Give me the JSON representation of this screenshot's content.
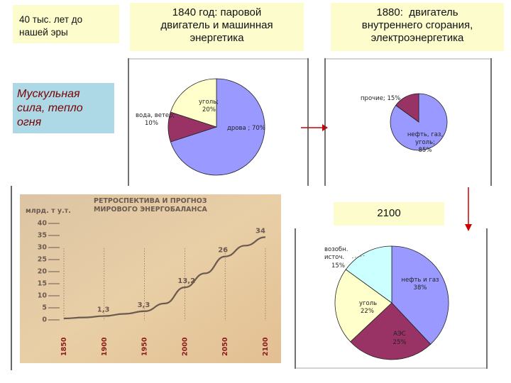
{
  "boxes": {
    "ancient": "40 тыс. лет до\nнашей эры",
    "muscle": "Мускульная\nсила, тепло\nогня",
    "y1840": "1840 год: паровой\nдвигатель и машинная\nэнергетика",
    "y1880": "1880:  двигатель\nвнутреннего сгорания,\nэлектроэнергетика",
    "y2100": "2100"
  },
  "colors": {
    "yellow_box": "#fdfccc",
    "muscle_box": "#add8e6",
    "muscle_text": "#7a0000",
    "pie_blue": "#9999ff",
    "pie_maroon": "#993366",
    "pie_cream": "#ffffcc",
    "pie_cyan": "#ccffff",
    "arrow": "#cc0000",
    "chart_bg": "#e8c9a0",
    "curve": "#6b5a4e"
  },
  "chart_data": [
    {
      "type": "pie",
      "labels": [
        "дрова ; 70%",
        "вода, ветер;\n10%",
        "уголь;\n20%"
      ],
      "values": [
        70,
        10,
        20
      ]
    },
    {
      "type": "pie",
      "labels": [
        "нефть, газ,\nуголь;\n85%",
        "прочие; 15%"
      ],
      "values": [
        85,
        15
      ]
    },
    {
      "type": "pie",
      "labels": [
        "нефть и газ\n38%",
        "АЭС\n25%",
        "уголь\n22%",
        "возобн.\nисточ.\n15%"
      ],
      "values": [
        38,
        25,
        22,
        15
      ]
    },
    {
      "type": "line",
      "title": "РЕТРОСПЕКТИВА И ПРОГНОЗ\nМИРОВОГО ЭНЕРГОБАЛАНСА",
      "ylabel": "млрд. т у.т.",
      "yticks": [
        "0",
        "5",
        "10",
        "15",
        "20",
        "25",
        "30",
        "35",
        "40"
      ],
      "ylim": [
        0,
        40
      ],
      "xticks": [
        "1850",
        "1900",
        "1950",
        "2000",
        "2050",
        "2100"
      ],
      "x": [
        1850,
        1875,
        1900,
        1925,
        1950,
        1975,
        2000,
        2025,
        2050,
        2075,
        2100
      ],
      "y": [
        0.3,
        0.7,
        1.3,
        2.2,
        3.3,
        6.5,
        13.2,
        19,
        26,
        30.5,
        34
      ],
      "annotations": [
        {
          "x": 1900,
          "y": 1.3,
          "label": "1,3"
        },
        {
          "x": 1950,
          "y": 3.3,
          "label": "3,3"
        },
        {
          "x": 2000,
          "y": 13.2,
          "label": "13,2"
        },
        {
          "x": 2050,
          "y": 26,
          "label": "26"
        },
        {
          "x": 2100,
          "y": 34,
          "label": "34"
        }
      ]
    }
  ]
}
